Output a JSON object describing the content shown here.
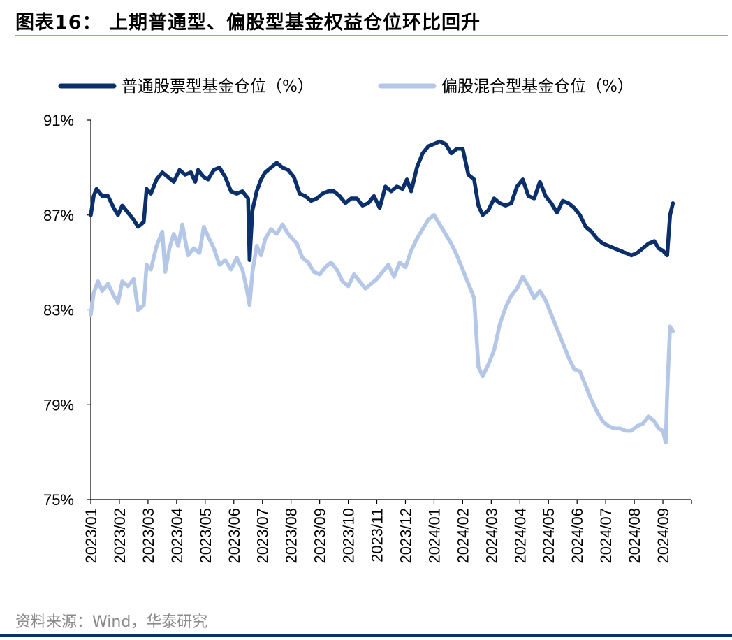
{
  "header": {
    "title": "图表16：  上期普通型、偏股型基金权益仓位环比回升"
  },
  "footer": {
    "source": "资料来源：Wind，华泰研究"
  },
  "colors": {
    "series1": "#0a2f6b",
    "series2": "#b4c7e7",
    "rule": "#8da4c4"
  },
  "chart_data": {
    "type": "line",
    "ylim": [
      75,
      91
    ],
    "yticks": [
      75,
      79,
      83,
      87,
      91
    ],
    "ytick_labels": [
      "75%",
      "79%",
      "83%",
      "87%",
      "91%"
    ],
    "xlim": [
      0,
      21
    ],
    "xtick_labels": [
      "2023/01",
      "2023/02",
      "2023/03",
      "2023/04",
      "2023/05",
      "2023/06",
      "2023/07",
      "2023/08",
      "2023/09",
      "2023/10",
      "2023/11",
      "2023/12",
      "2024/01",
      "2024/02",
      "2024/03",
      "2024/04",
      "2024/05",
      "2024/06",
      "2024/07",
      "2024/08",
      "2024/09"
    ],
    "legend": "top",
    "grid": false,
    "series": [
      {
        "name": "普通股票型基金仓位（%）",
        "points": [
          [
            0.0,
            87.0
          ],
          [
            0.1,
            87.8
          ],
          [
            0.2,
            88.1
          ],
          [
            0.4,
            87.8
          ],
          [
            0.6,
            87.8
          ],
          [
            0.8,
            87.3
          ],
          [
            0.95,
            87.0
          ],
          [
            1.1,
            87.4
          ],
          [
            1.3,
            87.1
          ],
          [
            1.5,
            86.8
          ],
          [
            1.65,
            86.5
          ],
          [
            1.85,
            86.7
          ],
          [
            1.95,
            88.1
          ],
          [
            2.1,
            87.9
          ],
          [
            2.3,
            88.5
          ],
          [
            2.5,
            88.8
          ],
          [
            2.7,
            88.6
          ],
          [
            2.9,
            88.4
          ],
          [
            3.1,
            88.9
          ],
          [
            3.3,
            88.7
          ],
          [
            3.5,
            88.8
          ],
          [
            3.65,
            88.4
          ],
          [
            3.75,
            88.9
          ],
          [
            3.95,
            88.6
          ],
          [
            4.1,
            88.5
          ],
          [
            4.3,
            88.9
          ],
          [
            4.5,
            89.0
          ],
          [
            4.7,
            88.6
          ],
          [
            4.9,
            88.0
          ],
          [
            5.1,
            87.9
          ],
          [
            5.3,
            88.0
          ],
          [
            5.5,
            87.7
          ],
          [
            5.55,
            85.1
          ],
          [
            5.65,
            87.2
          ],
          [
            5.8,
            88.0
          ],
          [
            5.95,
            88.5
          ],
          [
            6.1,
            88.8
          ],
          [
            6.3,
            89.0
          ],
          [
            6.5,
            89.2
          ],
          [
            6.7,
            89.0
          ],
          [
            6.9,
            88.9
          ],
          [
            7.1,
            88.6
          ],
          [
            7.3,
            87.9
          ],
          [
            7.5,
            87.8
          ],
          [
            7.7,
            87.6
          ],
          [
            7.9,
            87.7
          ],
          [
            8.1,
            87.9
          ],
          [
            8.3,
            88.0
          ],
          [
            8.5,
            88.0
          ],
          [
            8.7,
            87.8
          ],
          [
            8.9,
            87.5
          ],
          [
            9.1,
            87.7
          ],
          [
            9.3,
            87.7
          ],
          [
            9.5,
            87.4
          ],
          [
            9.7,
            87.5
          ],
          [
            9.9,
            87.8
          ],
          [
            10.1,
            87.3
          ],
          [
            10.3,
            88.2
          ],
          [
            10.5,
            88.0
          ],
          [
            10.7,
            88.2
          ],
          [
            10.9,
            88.1
          ],
          [
            11.05,
            88.5
          ],
          [
            11.2,
            88.0
          ],
          [
            11.4,
            89.0
          ],
          [
            11.6,
            89.6
          ],
          [
            11.8,
            89.9
          ],
          [
            12.0,
            90.0
          ],
          [
            12.2,
            90.1
          ],
          [
            12.4,
            90.0
          ],
          [
            12.6,
            89.6
          ],
          [
            12.8,
            89.8
          ],
          [
            13.0,
            89.8
          ],
          [
            13.2,
            88.7
          ],
          [
            13.4,
            88.5
          ],
          [
            13.55,
            87.4
          ],
          [
            13.7,
            87.0
          ],
          [
            13.9,
            87.2
          ],
          [
            14.1,
            87.7
          ],
          [
            14.3,
            87.5
          ],
          [
            14.5,
            87.4
          ],
          [
            14.7,
            87.5
          ],
          [
            14.9,
            88.2
          ],
          [
            15.1,
            88.5
          ],
          [
            15.3,
            87.8
          ],
          [
            15.5,
            87.7
          ],
          [
            15.7,
            88.4
          ],
          [
            15.9,
            87.8
          ],
          [
            16.1,
            87.5
          ],
          [
            16.3,
            87.1
          ],
          [
            16.5,
            87.6
          ],
          [
            16.7,
            87.5
          ],
          [
            16.9,
            87.3
          ],
          [
            17.1,
            87.0
          ],
          [
            17.3,
            86.5
          ],
          [
            17.5,
            86.3
          ],
          [
            17.7,
            86.0
          ],
          [
            17.9,
            85.8
          ],
          [
            18.1,
            85.7
          ],
          [
            18.3,
            85.6
          ],
          [
            18.5,
            85.5
          ],
          [
            18.7,
            85.4
          ],
          [
            18.9,
            85.3
          ],
          [
            19.1,
            85.4
          ],
          [
            19.3,
            85.6
          ],
          [
            19.5,
            85.8
          ],
          [
            19.7,
            85.9
          ],
          [
            19.85,
            85.6
          ],
          [
            20.0,
            85.5
          ],
          [
            20.15,
            85.3
          ],
          [
            20.25,
            87.0
          ],
          [
            20.35,
            87.5
          ]
        ]
      },
      {
        "name": "偏股混合型基金仓位（%）",
        "points": [
          [
            0.0,
            82.8
          ],
          [
            0.1,
            83.7
          ],
          [
            0.25,
            84.2
          ],
          [
            0.4,
            83.8
          ],
          [
            0.6,
            84.1
          ],
          [
            0.8,
            83.6
          ],
          [
            0.95,
            83.3
          ],
          [
            1.1,
            84.2
          ],
          [
            1.3,
            84.0
          ],
          [
            1.5,
            84.3
          ],
          [
            1.65,
            83.0
          ],
          [
            1.85,
            83.2
          ],
          [
            1.95,
            84.9
          ],
          [
            2.1,
            84.7
          ],
          [
            2.3,
            85.7
          ],
          [
            2.5,
            86.3
          ],
          [
            2.6,
            84.6
          ],
          [
            2.75,
            85.6
          ],
          [
            2.9,
            86.2
          ],
          [
            3.05,
            85.7
          ],
          [
            3.2,
            86.6
          ],
          [
            3.4,
            85.3
          ],
          [
            3.6,
            85.6
          ],
          [
            3.8,
            85.4
          ],
          [
            3.95,
            86.5
          ],
          [
            4.1,
            86.1
          ],
          [
            4.3,
            85.6
          ],
          [
            4.5,
            84.9
          ],
          [
            4.7,
            85.1
          ],
          [
            4.9,
            84.7
          ],
          [
            5.1,
            85.2
          ],
          [
            5.3,
            84.7
          ],
          [
            5.45,
            83.9
          ],
          [
            5.55,
            83.2
          ],
          [
            5.65,
            84.6
          ],
          [
            5.8,
            85.7
          ],
          [
            5.95,
            85.3
          ],
          [
            6.1,
            86.0
          ],
          [
            6.3,
            86.4
          ],
          [
            6.5,
            86.2
          ],
          [
            6.7,
            86.6
          ],
          [
            6.9,
            86.2
          ],
          [
            7.05,
            86.0
          ],
          [
            7.2,
            85.8
          ],
          [
            7.4,
            85.2
          ],
          [
            7.6,
            85.0
          ],
          [
            7.8,
            84.6
          ],
          [
            8.0,
            84.5
          ],
          [
            8.2,
            84.8
          ],
          [
            8.4,
            85.0
          ],
          [
            8.6,
            84.7
          ],
          [
            8.8,
            84.2
          ],
          [
            9.0,
            84.0
          ],
          [
            9.2,
            84.5
          ],
          [
            9.4,
            84.2
          ],
          [
            9.6,
            83.9
          ],
          [
            9.8,
            84.1
          ],
          [
            10.0,
            84.3
          ],
          [
            10.2,
            84.6
          ],
          [
            10.4,
            84.9
          ],
          [
            10.6,
            84.4
          ],
          [
            10.8,
            85.0
          ],
          [
            11.0,
            84.8
          ],
          [
            11.2,
            85.5
          ],
          [
            11.4,
            86.0
          ],
          [
            11.6,
            86.4
          ],
          [
            11.8,
            86.8
          ],
          [
            12.0,
            87.0
          ],
          [
            12.2,
            86.6
          ],
          [
            12.4,
            86.2
          ],
          [
            12.6,
            85.8
          ],
          [
            12.8,
            85.3
          ],
          [
            13.0,
            84.7
          ],
          [
            13.2,
            84.1
          ],
          [
            13.4,
            83.5
          ],
          [
            13.55,
            80.6
          ],
          [
            13.7,
            80.2
          ],
          [
            13.9,
            80.7
          ],
          [
            14.1,
            81.3
          ],
          [
            14.3,
            82.4
          ],
          [
            14.5,
            83.1
          ],
          [
            14.7,
            83.6
          ],
          [
            14.9,
            83.9
          ],
          [
            15.1,
            84.4
          ],
          [
            15.3,
            84.0
          ],
          [
            15.5,
            83.5
          ],
          [
            15.7,
            83.8
          ],
          [
            15.9,
            83.4
          ],
          [
            16.1,
            82.8
          ],
          [
            16.3,
            82.2
          ],
          [
            16.5,
            81.6
          ],
          [
            16.7,
            81.0
          ],
          [
            16.9,
            80.5
          ],
          [
            17.1,
            80.4
          ],
          [
            17.3,
            79.8
          ],
          [
            17.5,
            79.2
          ],
          [
            17.7,
            78.7
          ],
          [
            17.9,
            78.3
          ],
          [
            18.1,
            78.1
          ],
          [
            18.3,
            78.0
          ],
          [
            18.5,
            78.0
          ],
          [
            18.7,
            77.9
          ],
          [
            18.9,
            77.9
          ],
          [
            19.1,
            78.1
          ],
          [
            19.3,
            78.2
          ],
          [
            19.5,
            78.5
          ],
          [
            19.7,
            78.3
          ],
          [
            19.85,
            78.0
          ],
          [
            20.0,
            77.9
          ],
          [
            20.1,
            77.4
          ],
          [
            20.15,
            79.5
          ],
          [
            20.25,
            82.3
          ],
          [
            20.35,
            82.1
          ]
        ]
      }
    ]
  }
}
